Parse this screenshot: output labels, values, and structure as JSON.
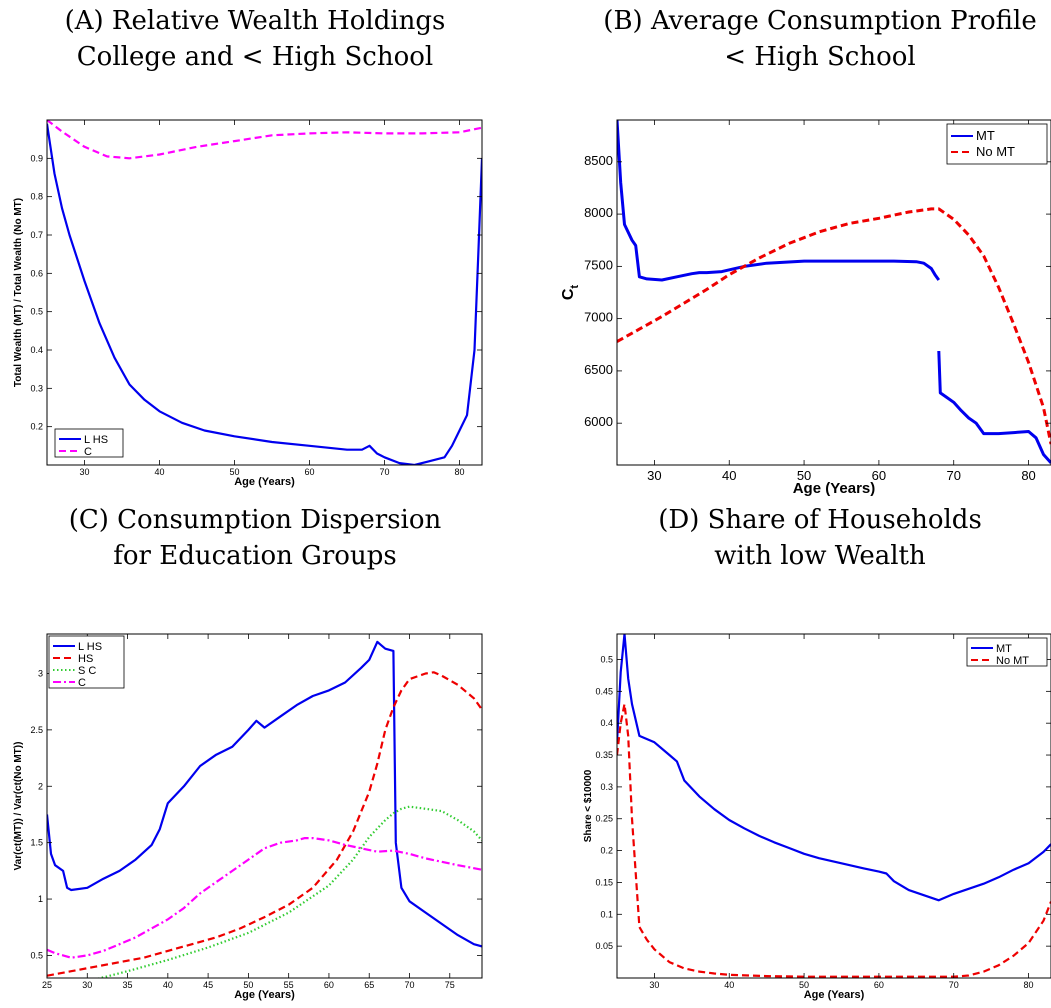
{
  "chart_data": [
    {
      "panel": "A",
      "type": "line",
      "title_lines": [
        "(A) Relative Wealth Holdings",
        "College and < High School"
      ],
      "xlabel": "Age (Years)",
      "ylabel": "Total Wealth (MT) / Total Wealth (No MT)",
      "xlim": [
        25,
        83
      ],
      "ylim": [
        0.1,
        1.0
      ],
      "xticks": [
        30,
        40,
        50,
        60,
        70,
        80
      ],
      "yticks": [
        0.2,
        0.3,
        0.4,
        0.5,
        0.6,
        0.7,
        0.8,
        0.9
      ],
      "legend_position": "bottom-left",
      "grid": false,
      "series": [
        {
          "name": "L HS",
          "color": "#0000ee",
          "dash": "solid",
          "x": [
            25,
            26,
            27,
            28,
            30,
            32,
            34,
            36,
            38,
            40,
            43,
            46,
            50,
            55,
            60,
            65,
            67,
            68,
            69,
            70,
            72,
            74,
            76,
            78,
            79,
            80,
            81,
            82,
            82.5,
            83
          ],
          "y": [
            0.99,
            0.86,
            0.77,
            0.7,
            0.58,
            0.47,
            0.38,
            0.31,
            0.27,
            0.24,
            0.21,
            0.19,
            0.175,
            0.16,
            0.15,
            0.14,
            0.14,
            0.15,
            0.13,
            0.12,
            0.105,
            0.1,
            0.11,
            0.12,
            0.15,
            0.19,
            0.23,
            0.4,
            0.65,
            0.9
          ]
        },
        {
          "name": "C",
          "color": "#ff00ff",
          "dash": "dashed",
          "x": [
            25,
            27,
            30,
            33,
            36,
            40,
            45,
            50,
            55,
            60,
            65,
            70,
            75,
            80,
            83
          ],
          "y": [
            1.0,
            0.97,
            0.93,
            0.905,
            0.9,
            0.91,
            0.93,
            0.945,
            0.96,
            0.965,
            0.968,
            0.965,
            0.965,
            0.968,
            0.98
          ]
        }
      ]
    },
    {
      "panel": "B",
      "type": "line",
      "title_lines": [
        "(B) Average Consumption Profile",
        "< High School"
      ],
      "xlabel": "Age (Years)",
      "ylabel": "Ct",
      "xlim": [
        25,
        83
      ],
      "ylim": [
        5600,
        8900
      ],
      "xticks": [
        30,
        40,
        50,
        60,
        70,
        80
      ],
      "yticks": [
        6000,
        6500,
        7000,
        7500,
        8000,
        8500
      ],
      "legend_position": "top-right",
      "grid": false,
      "series": [
        {
          "name": "MT",
          "color": "#0000ee",
          "dash": "solid",
          "x": [
            25,
            25.5,
            26,
            27,
            27.5,
            28,
            29,
            31,
            33,
            35,
            36,
            37,
            39,
            42,
            45,
            50,
            55,
            60,
            62,
            65,
            66,
            67,
            67.5,
            68,
            null,
            68,
            68.2,
            69,
            70,
            71,
            72,
            73,
            74,
            76,
            78,
            80,
            81,
            82,
            83
          ],
          "y": [
            8900,
            8300,
            7900,
            7750,
            7700,
            7400,
            7380,
            7370,
            7400,
            7430,
            7440,
            7440,
            7450,
            7500,
            7530,
            7550,
            7550,
            7550,
            7550,
            7545,
            7530,
            7480,
            7420,
            7370,
            null,
            6690,
            6290,
            6250,
            6200,
            6120,
            6050,
            6000,
            5900,
            5900,
            5910,
            5920,
            5860,
            5700,
            5620
          ]
        },
        {
          "name": "No MT",
          "color": "#ee0000",
          "dash": "dashed",
          "x": [
            25,
            28,
            31,
            34,
            37,
            40,
            44,
            48,
            52,
            56,
            60,
            64,
            67,
            68,
            70,
            72,
            74,
            76,
            78,
            80,
            82,
            83
          ],
          "y": [
            6780,
            6900,
            7020,
            7150,
            7280,
            7420,
            7580,
            7720,
            7830,
            7910,
            7960,
            8020,
            8050,
            8050,
            7950,
            7800,
            7600,
            7300,
            6950,
            6580,
            6150,
            5800
          ]
        }
      ]
    },
    {
      "panel": "C",
      "type": "line",
      "title_lines": [
        "(C) Consumption Dispersion",
        "for Education Groups"
      ],
      "xlabel": "Age (Years)",
      "ylabel": "Var(ct(MT)) / Var(ct(No MT))",
      "xlim": [
        25,
        79
      ],
      "ylim": [
        0.3,
        3.35
      ],
      "xticks": [
        25,
        30,
        35,
        40,
        45,
        50,
        55,
        60,
        65,
        70,
        75
      ],
      "yticks": [
        0.5,
        1,
        1.5,
        2,
        2.5,
        3
      ],
      "legend_position": "top-left",
      "grid": false,
      "series": [
        {
          "name": "L HS",
          "color": "#0000ee",
          "dash": "solid",
          "x": [
            25,
            25.5,
            26,
            27,
            27.5,
            28,
            30,
            32,
            34,
            36,
            38,
            39,
            40,
            42,
            44,
            46,
            48,
            50,
            51,
            52,
            54,
            56,
            58,
            60,
            62,
            64,
            65,
            66,
            66.5,
            67,
            68,
            68.3,
            69,
            70,
            72,
            74,
            76,
            78,
            79
          ],
          "y": [
            1.75,
            1.4,
            1.3,
            1.25,
            1.1,
            1.08,
            1.1,
            1.18,
            1.25,
            1.35,
            1.48,
            1.62,
            1.85,
            2.0,
            2.18,
            2.28,
            2.35,
            2.5,
            2.58,
            2.52,
            2.62,
            2.72,
            2.8,
            2.85,
            2.92,
            3.05,
            3.12,
            3.28,
            3.25,
            3.22,
            3.2,
            1.5,
            1.1,
            0.98,
            0.88,
            0.78,
            0.68,
            0.6,
            0.58
          ]
        },
        {
          "name": "HS",
          "color": "#ee0000",
          "dash": "dashed",
          "x": [
            25,
            28,
            31,
            34,
            37,
            40,
            43,
            46,
            49,
            52,
            55,
            58,
            61,
            63,
            65,
            66,
            67,
            68,
            69,
            70,
            72,
            73,
            74,
            76,
            78,
            79
          ],
          "y": [
            0.32,
            0.36,
            0.4,
            0.44,
            0.48,
            0.54,
            0.6,
            0.66,
            0.74,
            0.84,
            0.95,
            1.1,
            1.35,
            1.6,
            1.95,
            2.2,
            2.5,
            2.7,
            2.85,
            2.95,
            3.0,
            3.01,
            2.98,
            2.9,
            2.78,
            2.68
          ]
        },
        {
          "name": "S C",
          "color": "#33cc33",
          "dash": "dotted",
          "x": [
            25,
            30,
            35,
            40,
            45,
            50,
            55,
            60,
            63,
            65,
            67,
            68,
            69,
            70,
            72,
            74,
            76,
            78,
            79
          ],
          "y": [
            0.2,
            0.27,
            0.36,
            0.46,
            0.57,
            0.7,
            0.88,
            1.12,
            1.35,
            1.55,
            1.7,
            1.76,
            1.8,
            1.82,
            1.8,
            1.78,
            1.7,
            1.6,
            1.52
          ]
        },
        {
          "name": "C",
          "color": "#ff00ff",
          "dash": "dashdot",
          "x": [
            25,
            26,
            27,
            28,
            30,
            32,
            34,
            36,
            38,
            40,
            42,
            44,
            46,
            48,
            50,
            52,
            54,
            56,
            57,
            58,
            60,
            62,
            64,
            66,
            68,
            70,
            72,
            74,
            76,
            79
          ],
          "y": [
            0.55,
            0.52,
            0.5,
            0.48,
            0.5,
            0.54,
            0.6,
            0.66,
            0.74,
            0.82,
            0.92,
            1.05,
            1.15,
            1.25,
            1.35,
            1.45,
            1.5,
            1.52,
            1.54,
            1.54,
            1.52,
            1.48,
            1.45,
            1.42,
            1.43,
            1.4,
            1.36,
            1.33,
            1.3,
            1.26
          ]
        }
      ]
    },
    {
      "panel": "D",
      "type": "line",
      "title_lines": [
        "(D) Share of Households",
        "with low Wealth"
      ],
      "xlabel": "Age (Years)",
      "ylabel": "Share < $10000",
      "xlim": [
        25,
        83
      ],
      "ylim": [
        0,
        0.54
      ],
      "xticks": [
        30,
        40,
        50,
        60,
        70,
        80
      ],
      "yticks": [
        0.05,
        0.1,
        0.15,
        0.2,
        0.25,
        0.3,
        0.35,
        0.4,
        0.45,
        0.5
      ],
      "legend_position": "top-right",
      "grid": false,
      "series": [
        {
          "name": "MT",
          "color": "#0000ee",
          "dash": "solid",
          "x": [
            25,
            25.5,
            26,
            26.5,
            27,
            28,
            30,
            32,
            33,
            34,
            36,
            38,
            40,
            42,
            44,
            46,
            48,
            50,
            52,
            55,
            58,
            60,
            61,
            62,
            64,
            66,
            68,
            70,
            72,
            74,
            76,
            78,
            80,
            82,
            83
          ],
          "y": [
            0.37,
            0.48,
            0.54,
            0.47,
            0.43,
            0.38,
            0.37,
            0.35,
            0.34,
            0.31,
            0.285,
            0.265,
            0.248,
            0.235,
            0.223,
            0.213,
            0.204,
            0.195,
            0.188,
            0.18,
            0.172,
            0.167,
            0.164,
            0.152,
            0.138,
            0.13,
            0.122,
            0.132,
            0.14,
            0.148,
            0.158,
            0.17,
            0.18,
            0.198,
            0.21
          ]
        },
        {
          "name": "No MT",
          "color": "#ee0000",
          "dash": "dashed",
          "x": [
            25,
            25.5,
            26,
            26.5,
            27,
            28,
            29,
            30,
            32,
            34,
            36,
            38,
            40,
            45,
            50,
            55,
            60,
            65,
            70,
            72,
            74,
            76,
            78,
            80,
            82,
            83
          ],
          "y": [
            0.35,
            0.4,
            0.43,
            0.38,
            0.25,
            0.08,
            0.06,
            0.045,
            0.025,
            0.015,
            0.01,
            0.007,
            0.005,
            0.003,
            0.002,
            0.002,
            0.002,
            0.002,
            0.002,
            0.004,
            0.01,
            0.02,
            0.035,
            0.055,
            0.09,
            0.12
          ]
        }
      ]
    }
  ]
}
